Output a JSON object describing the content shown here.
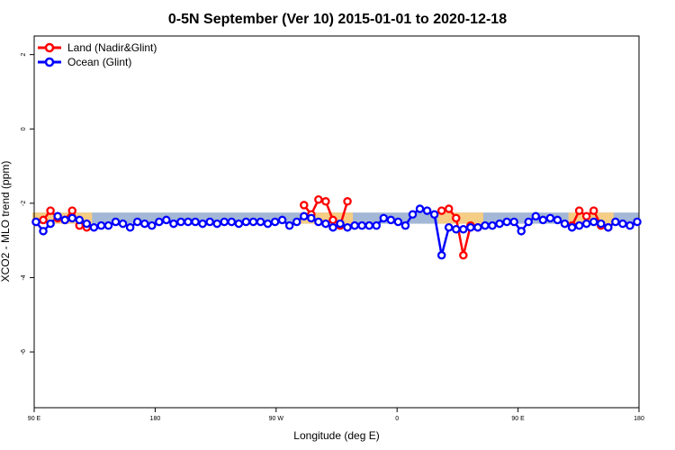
{
  "chart_data": {
    "type": "line",
    "title": "0-5N September (Ver 10)   2015-01-01 to 2020-12-18",
    "xlabel": "Longitude (deg E)",
    "ylabel": "XCO2 - MLO trend (ppm)",
    "x_ticks": [
      "90 E",
      "180",
      "90 W",
      "0",
      "90 E",
      "180"
    ],
    "y_ticks": [
      "2",
      "0",
      "-2",
      "-4",
      "-6"
    ],
    "ylim": [
      -7.5,
      2.5
    ],
    "legend_position": "top-left",
    "band": {
      "low": -2.55,
      "high": -2.25
    },
    "series": [
      {
        "name": "Land (Nadir&Glint)",
        "color": "#ff0000",
        "segments": [
          [
            [
              0,
              -2.5
            ],
            [
              1,
              -2.45
            ],
            [
              2,
              -2.2
            ],
            [
              3,
              -2.4
            ],
            [
              4,
              -2.45
            ],
            [
              5,
              -2.2
            ],
            [
              6,
              -2.6
            ],
            [
              7,
              -2.65
            ]
          ],
          [
            [
              37,
              -2.05
            ],
            [
              38,
              -2.3
            ],
            [
              39,
              -1.9
            ],
            [
              40,
              -1.95
            ],
            [
              41,
              -2.45
            ],
            [
              42,
              -2.6
            ],
            [
              43,
              -1.95
            ]
          ],
          [
            [
              56,
              -2.2
            ],
            [
              57,
              -2.15
            ],
            [
              58,
              -2.4
            ],
            [
              59,
              -3.4
            ],
            [
              60,
              -2.6
            ],
            [
              61,
              -2.65
            ]
          ],
          [
            [
              74,
              -2.6
            ],
            [
              75,
              -2.2
            ],
            [
              76,
              -2.35
            ],
            [
              77,
              -2.2
            ],
            [
              78,
              -2.6
            ],
            [
              79,
              -2.65
            ]
          ]
        ]
      },
      {
        "name": "Ocean (Glint)",
        "color": "#0000ff",
        "values": [
          -2.5,
          -2.75,
          -2.55,
          -2.35,
          -2.45,
          -2.4,
          -2.45,
          -2.55,
          -2.65,
          -2.6,
          -2.6,
          -2.5,
          -2.55,
          -2.65,
          -2.5,
          -2.55,
          -2.6,
          -2.5,
          -2.45,
          -2.55,
          -2.5,
          -2.5,
          -2.5,
          -2.55,
          -2.5,
          -2.55,
          -2.5,
          -2.5,
          -2.55,
          -2.5,
          -2.5,
          -2.5,
          -2.55,
          -2.5,
          -2.45,
          -2.6,
          -2.5,
          -2.35,
          -2.4,
          -2.5,
          -2.55,
          -2.65,
          -2.55,
          -2.65,
          -2.6,
          -2.6,
          -2.6,
          -2.6,
          -2.4,
          -2.45,
          -2.5,
          -2.6,
          -2.3,
          -2.15,
          -2.2,
          -2.3,
          -3.4,
          -2.65,
          -2.7,
          -2.7,
          -2.65,
          -2.65,
          -2.6,
          -2.6,
          -2.55,
          -2.5,
          -2.5,
          -2.75,
          -2.5,
          -2.35,
          -2.45,
          -2.4,
          -2.45,
          -2.55,
          -2.65,
          -2.6,
          -2.55,
          -2.5,
          -2.55,
          -2.65,
          -2.5,
          -2.55,
          -2.6,
          -2.5
        ],
        "n_points": 84
      }
    ]
  }
}
